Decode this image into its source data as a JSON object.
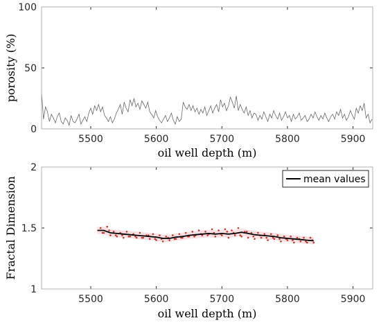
{
  "chart_data": [
    {
      "type": "line",
      "xlabel": "oil well depth (m)",
      "ylabel": "porosity (%)",
      "xlim": [
        5425,
        5930
      ],
      "ylim": [
        0,
        100
      ],
      "xticks": [
        5500,
        5600,
        5700,
        5800,
        5900
      ],
      "yticks": [
        0,
        50,
        100
      ],
      "series": [
        {
          "color": "#666666",
          "x": [
            5425,
            5428,
            5431,
            5434,
            5437,
            5440,
            5443,
            5446,
            5449,
            5452,
            5455,
            5458,
            5461,
            5464,
            5467,
            5470,
            5473,
            5476,
            5479,
            5482,
            5485,
            5488,
            5491,
            5494,
            5497,
            5500,
            5503,
            5506,
            5509,
            5512,
            5515,
            5518,
            5521,
            5524,
            5527,
            5530,
            5533,
            5536,
            5539,
            5542,
            5545,
            5548,
            5551,
            5554,
            5557,
            5560,
            5563,
            5566,
            5569,
            5572,
            5575,
            5578,
            5581,
            5584,
            5587,
            5590,
            5593,
            5596,
            5599,
            5602,
            5605,
            5608,
            5611,
            5614,
            5617,
            5620,
            5623,
            5626,
            5629,
            5632,
            5635,
            5638,
            5641,
            5644,
            5647,
            5650,
            5653,
            5656,
            5659,
            5662,
            5665,
            5668,
            5671,
            5674,
            5677,
            5680,
            5683,
            5686,
            5689,
            5692,
            5695,
            5698,
            5701,
            5704,
            5707,
            5710,
            5713,
            5716,
            5719,
            5722,
            5725,
            5728,
            5731,
            5734,
            5737,
            5740,
            5743,
            5746,
            5749,
            5752,
            5755,
            5758,
            5761,
            5764,
            5767,
            5770,
            5773,
            5776,
            5779,
            5782,
            5785,
            5788,
            5791,
            5794,
            5797,
            5800,
            5803,
            5806,
            5809,
            5812,
            5815,
            5818,
            5821,
            5824,
            5827,
            5830,
            5833,
            5836,
            5839,
            5842,
            5845,
            5848,
            5851,
            5854,
            5857,
            5860,
            5863,
            5866,
            5869,
            5872,
            5875,
            5878,
            5881,
            5884,
            5887,
            5890,
            5893,
            5896,
            5899,
            5902,
            5905,
            5908,
            5911,
            5914,
            5917,
            5920,
            5923,
            5926,
            5929
          ],
          "y": [
            30,
            8,
            18,
            14,
            6,
            12,
            9,
            5,
            10,
            13,
            6,
            4,
            9,
            7,
            3,
            11,
            6,
            5,
            8,
            12,
            4,
            7,
            10,
            6,
            13,
            17,
            12,
            19,
            15,
            20,
            14,
            18,
            11,
            9,
            6,
            10,
            5,
            8,
            13,
            16,
            20,
            12,
            22,
            17,
            14,
            24,
            19,
            25,
            18,
            21,
            16,
            23,
            20,
            17,
            22,
            14,
            12,
            9,
            15,
            10,
            7,
            5,
            8,
            11,
            6,
            9,
            13,
            7,
            4,
            10,
            6,
            8,
            22,
            18,
            16,
            20,
            15,
            19,
            14,
            17,
            12,
            16,
            13,
            18,
            11,
            15,
            19,
            13,
            17,
            20,
            14,
            24,
            18,
            21,
            15,
            19,
            26,
            22,
            17,
            27,
            15,
            20,
            16,
            13,
            18,
            11,
            15,
            9,
            13,
            12,
            7,
            11,
            8,
            14,
            10,
            6,
            12,
            9,
            15,
            11,
            8,
            13,
            7,
            10,
            14,
            9,
            11,
            6,
            12,
            8,
            10,
            13,
            7,
            9,
            11,
            6,
            8,
            12,
            9,
            14,
            10,
            7,
            11,
            8,
            13,
            9,
            6,
            10,
            12,
            8,
            14,
            11,
            16,
            9,
            12,
            7,
            10,
            15,
            11,
            8,
            17,
            13,
            19,
            15,
            21,
            9,
            12,
            5,
            8
          ]
        }
      ]
    },
    {
      "type": "line",
      "xlabel": "oil well depth (m)",
      "ylabel": "Fractal Dimension",
      "xlim": [
        5425,
        5930
      ],
      "ylim": [
        1,
        2
      ],
      "xticks": [
        5500,
        5600,
        5700,
        5800,
        5900
      ],
      "yticks": [
        1,
        1.5,
        2
      ],
      "legend": {
        "position": "top-right",
        "entries": [
          "mean values"
        ]
      },
      "series": [
        {
          "name": "mean values",
          "color": "#000000",
          "x": [
            5510,
            5520,
            5530,
            5540,
            5550,
            5560,
            5570,
            5580,
            5590,
            5600,
            5610,
            5620,
            5630,
            5640,
            5650,
            5660,
            5670,
            5680,
            5690,
            5700,
            5710,
            5720,
            5730,
            5740,
            5750,
            5760,
            5770,
            5780,
            5790,
            5800,
            5810,
            5820,
            5830,
            5840
          ],
          "y": [
            1.48,
            1.48,
            1.46,
            1.455,
            1.45,
            1.445,
            1.44,
            1.435,
            1.43,
            1.425,
            1.415,
            1.415,
            1.425,
            1.43,
            1.44,
            1.445,
            1.45,
            1.455,
            1.45,
            1.455,
            1.45,
            1.455,
            1.465,
            1.455,
            1.445,
            1.44,
            1.435,
            1.43,
            1.42,
            1.415,
            1.41,
            1.405,
            1.4,
            1.395
          ]
        },
        {
          "name": "",
          "kind": "scatter",
          "color": "#c0392b",
          "x": [
            5515,
            5520,
            5525,
            5530,
            5535,
            5540,
            5545,
            5550,
            5555,
            5560,
            5565,
            5570,
            5575,
            5580,
            5585,
            5590,
            5595,
            5600,
            5605,
            5610,
            5615,
            5620,
            5625,
            5630,
            5635,
            5640,
            5645,
            5650,
            5655,
            5660,
            5665,
            5670,
            5675,
            5680,
            5685,
            5690,
            5695,
            5700,
            5705,
            5710,
            5715,
            5720,
            5725,
            5730,
            5735,
            5740,
            5745,
            5750,
            5755,
            5760,
            5765,
            5770,
            5775,
            5780,
            5785,
            5790,
            5795,
            5800,
            5805,
            5810,
            5815,
            5820,
            5825,
            5830,
            5835,
            5840,
            5518,
            5528,
            5538,
            5548,
            5558,
            5568,
            5578,
            5588,
            5598,
            5608,
            5618,
            5628,
            5638,
            5648,
            5658,
            5668,
            5678,
            5688,
            5698,
            5708,
            5718,
            5728,
            5738,
            5748,
            5758,
            5768,
            5778,
            5788,
            5798,
            5808,
            5818,
            5828,
            5838
          ],
          "y": [
            1.5,
            1.46,
            1.51,
            1.44,
            1.47,
            1.43,
            1.46,
            1.42,
            1.47,
            1.43,
            1.45,
            1.42,
            1.46,
            1.42,
            1.44,
            1.41,
            1.45,
            1.4,
            1.44,
            1.39,
            1.43,
            1.4,
            1.44,
            1.41,
            1.45,
            1.42,
            1.46,
            1.43,
            1.47,
            1.44,
            1.48,
            1.44,
            1.47,
            1.45,
            1.49,
            1.43,
            1.48,
            1.44,
            1.49,
            1.42,
            1.48,
            1.44,
            1.5,
            1.43,
            1.47,
            1.42,
            1.46,
            1.41,
            1.46,
            1.42,
            1.45,
            1.4,
            1.45,
            1.41,
            1.44,
            1.39,
            1.43,
            1.4,
            1.43,
            1.38,
            1.42,
            1.39,
            1.42,
            1.38,
            1.42,
            1.38,
            1.46,
            1.48,
            1.44,
            1.44,
            1.43,
            1.43,
            1.42,
            1.44,
            1.41,
            1.41,
            1.42,
            1.41,
            1.42,
            1.43,
            1.43,
            1.45,
            1.44,
            1.46,
            1.45,
            1.47,
            1.46,
            1.44,
            1.47,
            1.43,
            1.44,
            1.42,
            1.42,
            1.41,
            1.41,
            1.4,
            1.41,
            1.39,
            1.4
          ]
        }
      ]
    }
  ]
}
